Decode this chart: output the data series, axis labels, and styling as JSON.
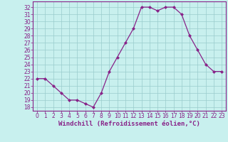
{
  "hours": [
    0,
    1,
    2,
    3,
    4,
    5,
    6,
    7,
    8,
    9,
    10,
    11,
    12,
    13,
    14,
    15,
    16,
    17,
    18,
    19,
    20,
    21,
    22,
    23
  ],
  "values": [
    22,
    22,
    21,
    20,
    19,
    19,
    18.5,
    18,
    20,
    23,
    25,
    27,
    29,
    32,
    32,
    31.5,
    32,
    32,
    31,
    28,
    26,
    24,
    23,
    23
  ],
  "line_color": "#882288",
  "bg_color": "#c8f0ee",
  "plot_bg_color": "#c8f0ee",
  "grid_color": "#99cccc",
  "xlabel": "Windchill (Refroidissement éolien,°C)",
  "xlabel_color": "#882288",
  "tick_color": "#882288",
  "axis_color": "#882288",
  "ylim": [
    17.5,
    32.8
  ],
  "xlim": [
    -0.5,
    23.5
  ],
  "yticks": [
    18,
    19,
    20,
    21,
    22,
    23,
    24,
    25,
    26,
    27,
    28,
    29,
    30,
    31,
    32
  ],
  "xticks": [
    0,
    1,
    2,
    3,
    4,
    5,
    6,
    7,
    8,
    9,
    10,
    11,
    12,
    13,
    14,
    15,
    16,
    17,
    18,
    19,
    20,
    21,
    22,
    23
  ],
  "marker": "D",
  "marker_size": 2.0,
  "line_width": 0.9,
  "tick_fontsize": 5.5,
  "xlabel_fontsize": 6.5
}
